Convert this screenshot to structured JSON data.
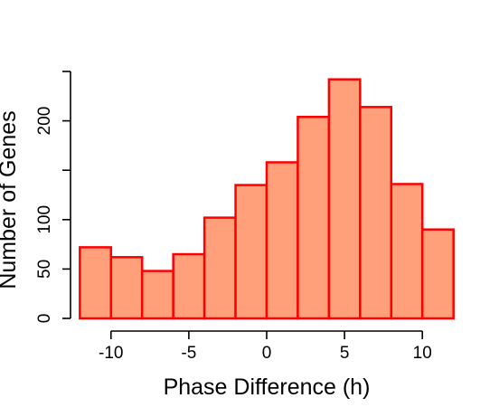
{
  "chart_data": {
    "type": "histogram",
    "title": "",
    "xlabel": "Phase Difference (h)",
    "ylabel": "Number of Genes",
    "bins": [
      {
        "start": -12,
        "end": -10,
        "count": 72
      },
      {
        "start": -10,
        "end": -8,
        "count": 62
      },
      {
        "start": -8,
        "end": -6,
        "count": 48
      },
      {
        "start": -6,
        "end": -4,
        "count": 65
      },
      {
        "start": -4,
        "end": -2,
        "count": 102
      },
      {
        "start": -2,
        "end": 0,
        "count": 135
      },
      {
        "start": 0,
        "end": 2,
        "count": 158
      },
      {
        "start": 2,
        "end": 4,
        "count": 204
      },
      {
        "start": 4,
        "end": 6,
        "count": 242
      },
      {
        "start": 6,
        "end": 8,
        "count": 214
      },
      {
        "start": 8,
        "end": 10,
        "count": 136
      },
      {
        "start": 10,
        "end": 12,
        "count": 90
      }
    ],
    "xticks": [
      -10,
      -5,
      0,
      5,
      10
    ],
    "xtick_labels": [
      "-10",
      "-5",
      "0",
      "5",
      "10"
    ],
    "yticks": [
      0,
      50,
      100,
      150,
      200,
      250
    ],
    "ytick_labels": [
      "0",
      "50",
      "100",
      "",
      "200",
      ""
    ],
    "xlim": [
      -12.6,
      12.6
    ],
    "ylim": [
      0,
      250
    ],
    "grid": false,
    "colors": {
      "bar_fill": "#FFA07A",
      "bar_stroke": "#FF0000",
      "axis": "#000000"
    }
  }
}
